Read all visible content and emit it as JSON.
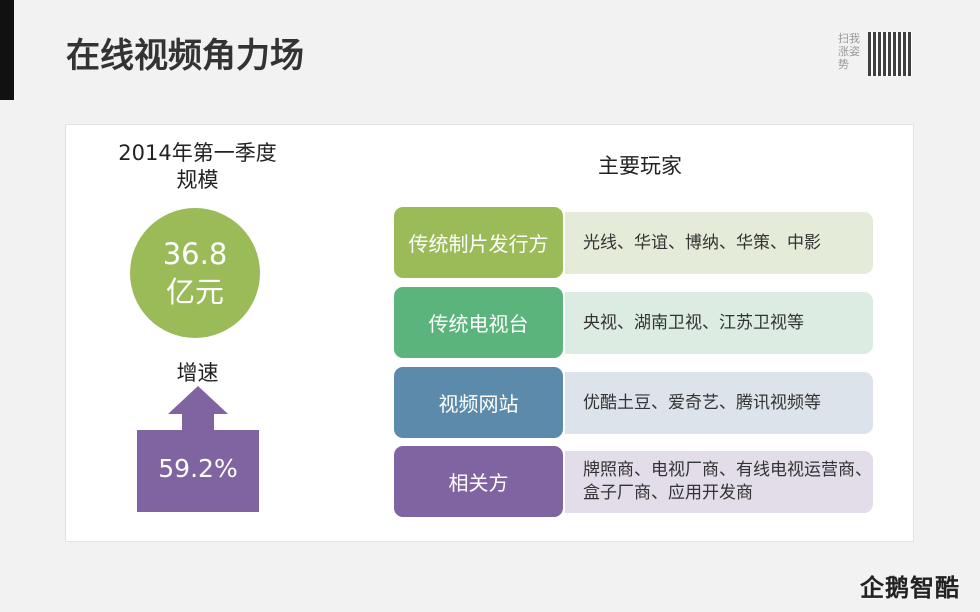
{
  "title": "在线视频角力场",
  "qr_caption": "扫我涨姿势",
  "left": {
    "period": "2014年第一季度",
    "scale_label": "规模",
    "scale_value": "36.8",
    "scale_unit": "亿元",
    "growth_label": "增速",
    "growth_value": "59.2%"
  },
  "players": {
    "heading": "主要玩家",
    "rows": [
      {
        "category": "传统制片发行方",
        "members": "光线、华谊、博纳、华策、中影",
        "color": "#9bbb59",
        "light": "#e5ebd9"
      },
      {
        "category": "传统电视台",
        "members": "央视、湖南卫视、江苏卫视等",
        "color": "#5bb47c",
        "light": "#dcece2"
      },
      {
        "category": "视频网站",
        "members": "优酷土豆、爱奇艺、腾讯视频等",
        "color": "#5b8aab",
        "light": "#dde3ea"
      },
      {
        "category": "相关方",
        "members": "牌照商、电视厂商、有线电视运营商、盒子厂商、应用开发商",
        "color": "#8064a2",
        "light": "#e3dce9"
      }
    ]
  },
  "logo": "企鹅智酷"
}
